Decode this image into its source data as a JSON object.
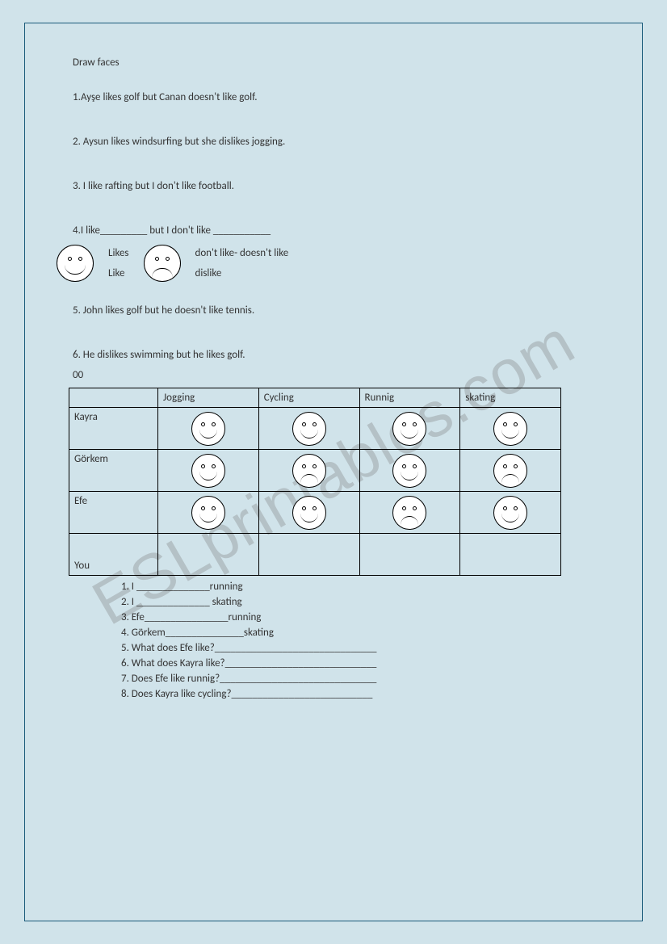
{
  "watermark": "ESLprintables.com",
  "title": "Draw  faces",
  "sentences": {
    "s1": "1.Ayşe  likes  golf  but Canan  doesn't like golf.",
    "s2": "2. Aysun likes  windsurfing but she dislikes  jogging.",
    "s3": "3. I like  rafting  but I don't like  football.",
    "s4": "4.I like_________   but I don't like  ___________",
    "s5": "5. John likes  golf  but he doesn't like tennis.",
    "s6": "6. He dislikes  swimming  but he likes golf.",
    "zeros": "00"
  },
  "key": {
    "likes": "Likes",
    "like": "Like",
    "dont": "don't like- doesn't like",
    "dislike": "dislike"
  },
  "table": {
    "headers": [
      "",
      "Jogging",
      "Cycling",
      "Runnig",
      "skating"
    ],
    "rows": [
      {
        "name": "Kayra",
        "cells": [
          "happy",
          "happy",
          "happy",
          "happy"
        ]
      },
      {
        "name": "Görkem",
        "cells": [
          "happy",
          "sad",
          "happy",
          "sad"
        ]
      },
      {
        "name": "Efe",
        "cells": [
          "happy",
          "happy",
          "sad",
          "happy"
        ]
      },
      {
        "name": "You",
        "cells": [
          "",
          "",
          "",
          ""
        ]
      }
    ]
  },
  "questions": {
    "q1": "1.    I  ______________running",
    "q2": "2.    I  ______________ skating",
    "q3": "3.    Efe________________running",
    "q4": "4.    Görkem_______________skating",
    "q5": "5.    What does  Efe like?_______________________________",
    "q6": "6.    What does  Kayra like?_____________________________",
    "q7": "7.    Does Efe like runnig?______________________________",
    "q8": "8.    Does Kayra like  cycling?___________________________"
  }
}
